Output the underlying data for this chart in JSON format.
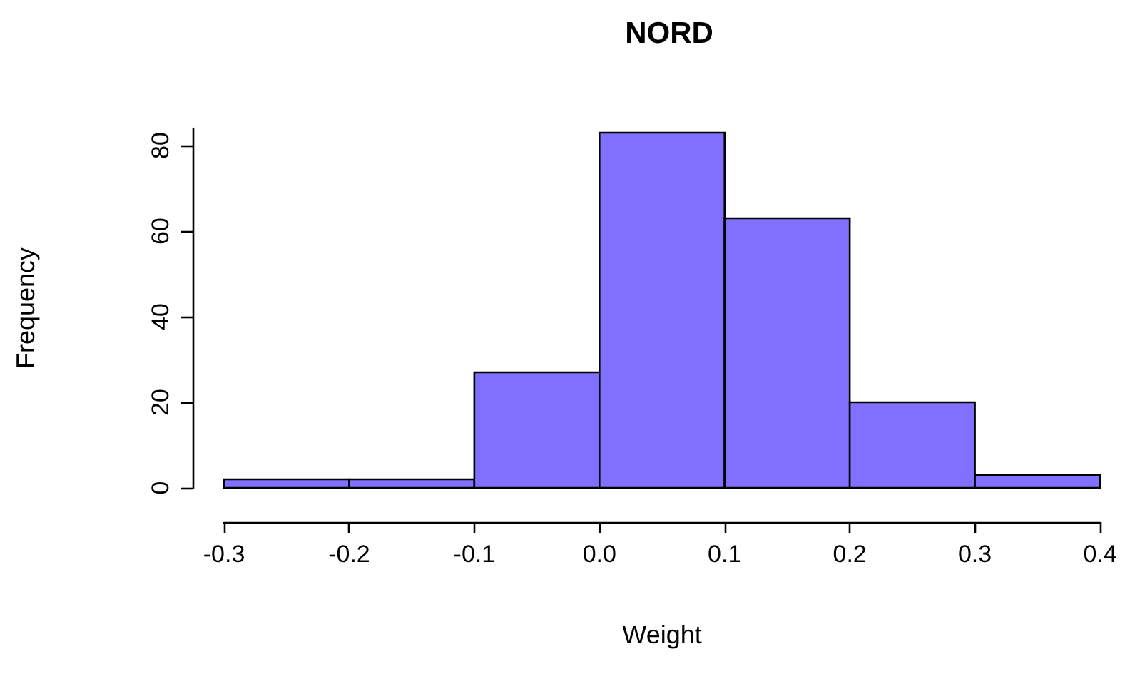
{
  "chart_data": {
    "type": "histogram",
    "title": "NORD",
    "xlabel": "Weight",
    "ylabel": "Frequency",
    "bins": [
      -0.3,
      -0.2,
      -0.1,
      0.0,
      0.1,
      0.2,
      0.3,
      0.4
    ],
    "values": [
      2,
      2,
      27,
      83,
      63,
      20,
      3
    ],
    "color": "#8170ff",
    "xlim": [
      -0.3,
      0.4
    ],
    "xticks": [
      -0.3,
      -0.2,
      -0.1,
      {
        "value": 0,
        "label": "0.0"
      },
      0.1,
      0.2,
      0.3,
      0.4
    ],
    "ylim": [
      0,
      84
    ],
    "yticks": [
      0,
      20,
      40,
      60,
      80
    ],
    "grid": false
  }
}
